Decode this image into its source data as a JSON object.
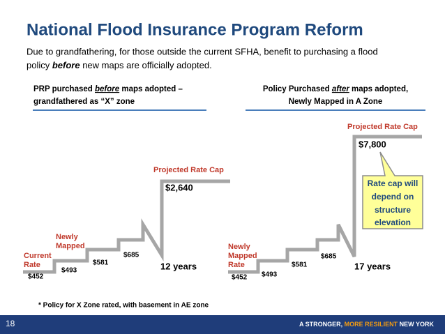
{
  "header": {
    "title": "National Flood Insurance Program Reform",
    "subtitle": {
      "line1": "Due to grandfathering, for those outside the current SFHA, benefit to purchasing a flood",
      "line2_start": "policy ",
      "line2_emph": "before",
      "line2_end": " new maps are officially adopted."
    }
  },
  "left_panel": {
    "heading": {
      "start": "PRP purchased ",
      "emph": "before",
      "end": " maps adopted –",
      "line2": "grandfathered as “X” zone"
    },
    "annotations": {
      "current_rate": [
        "Current",
        "Rate"
      ],
      "newly_mapped": [
        "Newly",
        "Mapped"
      ]
    },
    "steps": [
      "$452",
      "$493",
      "$581",
      "$685"
    ],
    "duration": "12 years",
    "cap_label": "Projected Rate Cap",
    "cap_value": "$2,640"
  },
  "right_panel": {
    "heading": {
      "start": "Policy Purchased ",
      "emph": "after",
      "end": " maps adopted,",
      "line2": "Newly Mapped in A Zone"
    },
    "annotations": {
      "newly_mapped_rate": [
        "Newly",
        "Mapped",
        "Rate"
      ]
    },
    "steps": [
      "$452",
      "$493",
      "$581",
      "$685"
    ],
    "duration": "17 years",
    "cap_label": "Projected Rate Cap",
    "cap_value": "$7,800",
    "callout": [
      "Rate cap will",
      "depend on",
      "structure",
      "elevation"
    ]
  },
  "footnote": "* Policy for X Zone rated, with basement in AE zone",
  "footer": {
    "page": "18",
    "brand_start": "A STRONGER, ",
    "brand_emph": "MORE RESILIENT",
    "brand_end": " NEW YORK"
  }
}
